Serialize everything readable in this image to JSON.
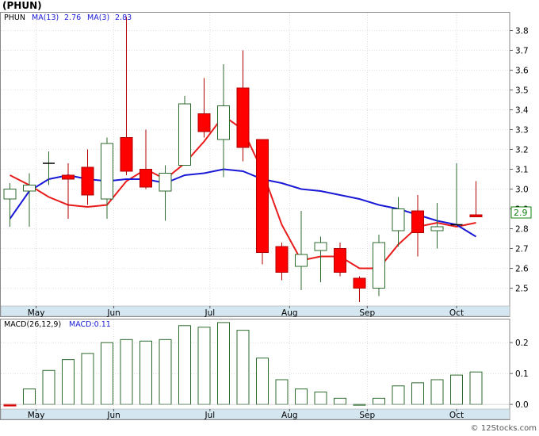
{
  "header": {
    "title": "(PHUN)",
    "ticker": "PHUN",
    "ma_long_label": "MA(13)",
    "ma_long_value": "2.76",
    "ma_short_label": "MA(3)",
    "ma_short_value": "2.83",
    "last_price_tag": "2.9"
  },
  "macd_header": {
    "params_label": "MACD(26,12,9)",
    "value_label": "MACD:0.11"
  },
  "watermark": "© 12Stocks.com",
  "colors": {
    "up_candle": "#2e6b2e",
    "down_candle": "#ff0000",
    "ma_short": "#e81c1c",
    "ma_long": "#1a1ad6",
    "macd_bar": "#2e6b2e",
    "macd_negative": "#dd0000",
    "axis_band": "#d4e6f0",
    "grid": "#c8c8c8",
    "price_tag_bg": "#ffffff",
    "price_tag_text": "#108010"
  },
  "chart_data": [
    {
      "type": "candlestick",
      "title": "(PHUN)",
      "interval": "weekly",
      "y_ticks": [
        2.5,
        2.6,
        2.7,
        2.8,
        2.9,
        3.0,
        3.1,
        3.2,
        3.3,
        3.4,
        3.5,
        3.6,
        3.7,
        3.8
      ],
      "ylim": [
        2.41,
        3.89
      ],
      "x_ticks": [
        "May",
        "Jun",
        "Jul",
        "Aug",
        "Sep",
        "Oct"
      ],
      "x_tick_index": [
        1.35,
        5.35,
        10.3,
        14.4,
        18.4,
        23.0
      ],
      "grid": true,
      "candles": [
        {
          "o": 2.95,
          "h": 3.03,
          "l": 2.81,
          "c": 3.0
        },
        {
          "o": 2.99,
          "h": 3.08,
          "l": 2.81,
          "c": 3.02
        },
        {
          "o": 3.13,
          "h": 3.19,
          "l": 3.02,
          "c": 3.13
        },
        {
          "o": 3.07,
          "h": 3.13,
          "l": 2.85,
          "c": 3.05
        },
        {
          "o": 3.11,
          "h": 3.2,
          "l": 2.92,
          "c": 2.97
        },
        {
          "o": 2.95,
          "h": 3.26,
          "l": 2.85,
          "c": 3.23
        },
        {
          "o": 3.26,
          "h": 3.87,
          "l": 3.07,
          "c": 3.09
        },
        {
          "o": 3.1,
          "h": 3.3,
          "l": 3.0,
          "c": 3.01
        },
        {
          "o": 2.99,
          "h": 3.12,
          "l": 2.84,
          "c": 3.08
        },
        {
          "o": 3.12,
          "h": 3.47,
          "l": 3.12,
          "c": 3.43
        },
        {
          "o": 3.38,
          "h": 3.56,
          "l": 3.26,
          "c": 3.29
        },
        {
          "o": 3.25,
          "h": 3.63,
          "l": 3.06,
          "c": 3.42
        },
        {
          "o": 3.51,
          "h": 3.7,
          "l": 3.14,
          "c": 3.21
        },
        {
          "o": 3.25,
          "h": 3.25,
          "l": 2.62,
          "c": 2.68
        },
        {
          "o": 2.71,
          "h": 2.73,
          "l": 2.54,
          "c": 2.58
        },
        {
          "o": 2.61,
          "h": 2.89,
          "l": 2.49,
          "c": 2.67
        },
        {
          "o": 2.69,
          "h": 2.76,
          "l": 2.53,
          "c": 2.73
        },
        {
          "o": 2.7,
          "h": 2.73,
          "l": 2.56,
          "c": 2.58
        },
        {
          "o": 2.55,
          "h": 2.56,
          "l": 2.43,
          "c": 2.5
        },
        {
          "o": 2.5,
          "h": 2.77,
          "l": 2.46,
          "c": 2.73
        },
        {
          "o": 2.79,
          "h": 2.96,
          "l": 2.71,
          "c": 2.9
        },
        {
          "o": 2.89,
          "h": 2.97,
          "l": 2.66,
          "c": 2.78
        },
        {
          "o": 2.79,
          "h": 2.93,
          "l": 2.7,
          "c": 2.81
        },
        {
          "o": 2.82,
          "h": 3.13,
          "l": 2.82,
          "c": 2.82
        },
        {
          "o": 2.87,
          "h": 3.04,
          "l": 2.86,
          "c": 2.86
        }
      ],
      "series": [
        {
          "name": "MA(3)",
          "values": [
            3.07,
            3.02,
            2.96,
            2.92,
            2.91,
            2.92,
            3.04,
            3.1,
            3.05,
            3.13,
            3.24,
            3.37,
            3.3,
            3.09,
            2.82,
            2.64,
            2.66,
            2.66,
            2.6,
            2.6,
            2.72,
            2.81,
            2.83,
            2.81,
            2.83
          ]
        },
        {
          "name": "MA(13)",
          "values": [
            2.85,
            2.99,
            3.05,
            3.07,
            3.05,
            3.04,
            3.05,
            3.05,
            3.03,
            3.07,
            3.08,
            3.1,
            3.09,
            3.05,
            3.03,
            3.0,
            2.99,
            2.97,
            2.95,
            2.92,
            2.9,
            2.87,
            2.84,
            2.82,
            2.76
          ]
        }
      ]
    },
    {
      "type": "bar",
      "title": "MACD(26,12,9)",
      "y_ticks": [
        0.0,
        0.1,
        0.2
      ],
      "ylim": [
        -0.015,
        0.275
      ],
      "x_ticks": [
        "May",
        "Jun",
        "Jul",
        "Aug",
        "Sep",
        "Oct"
      ],
      "grid": true,
      "values": [
        -0.005,
        0.05,
        0.11,
        0.145,
        0.165,
        0.2,
        0.21,
        0.205,
        0.21,
        0.255,
        0.25,
        0.265,
        0.24,
        0.15,
        0.08,
        0.05,
        0.04,
        0.02,
        0.0,
        0.02,
        0.06,
        0.07,
        0.08,
        0.095,
        0.105
      ]
    }
  ]
}
